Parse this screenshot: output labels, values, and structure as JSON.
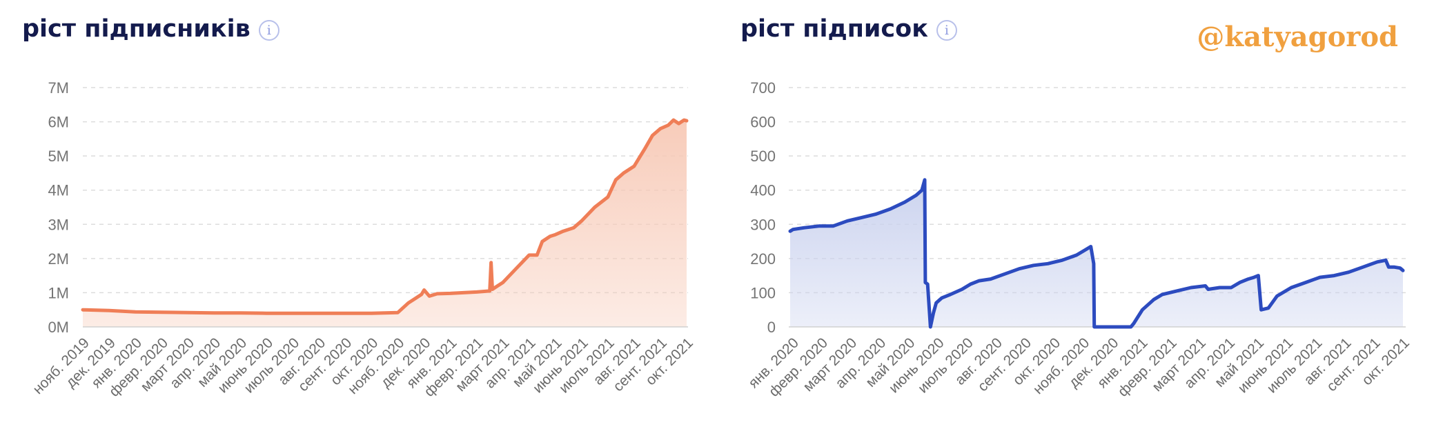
{
  "watermark": "@katyagorod",
  "info_glyph": "i",
  "chart_data": [
    {
      "type": "area",
      "title": "ріст підписників",
      "xlabel": "",
      "ylabel": "",
      "color": "#ef7e57",
      "fill_color": "#f7c9b6",
      "ylim": [
        0,
        7000000
      ],
      "y_ticks": [
        0,
        1000000,
        2000000,
        3000000,
        4000000,
        5000000,
        6000000,
        7000000
      ],
      "y_tick_labels": [
        "0M",
        "1M",
        "2M",
        "3M",
        "4M",
        "5M",
        "6M",
        "7M"
      ],
      "x_tick_labels": [
        "нояб. 2019",
        "дек. 2019",
        "янв. 2020",
        "февр. 2020",
        "март 2020",
        "апр. 2020",
        "май 2020",
        "июнь 2020",
        "июль 2020",
        "авг. 2020",
        "сент. 2020",
        "окт. 2020",
        "нояб. 2020",
        "дек. 2020",
        "янв. 2021",
        "февр. 2021",
        "март 2021",
        "апр. 2021",
        "май 2021",
        "июнь 2021",
        "июль 2021",
        "авг. 2021",
        "сент. 2021",
        "окт. 2021"
      ],
      "grid": true,
      "legend": "none",
      "x": [
        0,
        1,
        2,
        3,
        4,
        5,
        6,
        7,
        8,
        9,
        10,
        11,
        12,
        12.4,
        12.7,
        12.9,
        13.0,
        13.2,
        13.5,
        14.0,
        14.5,
        15.0,
        15.5,
        15.55,
        15.6,
        15.8,
        16.0,
        16.5,
        17.0,
        17.3,
        17.5,
        17.8,
        18.0,
        18.3,
        18.7,
        19.0,
        19.5,
        20.0,
        20.3,
        20.6,
        21.0,
        21.4,
        21.7,
        22.0,
        22.3,
        22.5,
        22.7,
        22.9,
        23.0
      ],
      "values": [
        500000,
        480000,
        440000,
        430000,
        420000,
        410000,
        410000,
        400000,
        400000,
        400000,
        400000,
        400000,
        420000,
        700000,
        850000,
        950000,
        1080000,
        900000,
        970000,
        980000,
        1000000,
        1020000,
        1050000,
        1880000,
        1100000,
        1200000,
        1300000,
        1700000,
        2100000,
        2100000,
        2500000,
        2650000,
        2700000,
        2800000,
        2900000,
        3100000,
        3500000,
        3800000,
        4300000,
        4500000,
        4700000,
        5200000,
        5600000,
        5800000,
        5900000,
        6050000,
        5950000,
        6050000,
        6030000
      ]
    },
    {
      "type": "area",
      "title": "ріст підписок",
      "xlabel": "",
      "ylabel": "",
      "color": "#2c4bbf",
      "fill_color": "#c9d1ee",
      "ylim": [
        0,
        700
      ],
      "y_ticks": [
        0,
        100,
        200,
        300,
        400,
        500,
        600,
        700
      ],
      "y_tick_labels": [
        "0",
        "100",
        "200",
        "300",
        "400",
        "500",
        "600",
        "700"
      ],
      "x_tick_labels": [
        "янв. 2020",
        "февр. 2020",
        "март 2020",
        "апр. 2020",
        "май 2020",
        "июнь 2020",
        "июль 2020",
        "авг. 2020",
        "сент. 2020",
        "окт. 2020",
        "нояб. 2020",
        "дек. 2020",
        "янв. 2021",
        "февр. 2021",
        "март 2021",
        "апр. 2021",
        "май 2021",
        "июнь 2021",
        "июль 2021",
        "авг. 2021",
        "сент. 2021",
        "окт. 2021"
      ],
      "grid": true,
      "legend": "none",
      "x": [
        0,
        0.1,
        0.5,
        1.0,
        1.5,
        2.0,
        2.5,
        3.0,
        3.5,
        4.0,
        4.4,
        4.6,
        4.7,
        4.72,
        4.8,
        4.9,
        5.0,
        5.1,
        5.3,
        5.6,
        6.0,
        6.3,
        6.6,
        7.0,
        7.5,
        8.0,
        8.5,
        9.0,
        9.5,
        10.0,
        10.3,
        10.5,
        10.6,
        10.62,
        11.0,
        11.5,
        11.9,
        12.0,
        12.3,
        12.7,
        13.0,
        13.5,
        14.0,
        14.5,
        14.6,
        15.0,
        15.4,
        15.7,
        16.0,
        16.2,
        16.35,
        16.45,
        16.7,
        17.0,
        17.5,
        18.0,
        18.5,
        19.0,
        19.5,
        20.0,
        20.5,
        20.8,
        20.9,
        21.1,
        21.3,
        21.4
      ],
      "values": [
        280,
        285,
        290,
        295,
        295,
        310,
        320,
        330,
        345,
        365,
        385,
        400,
        430,
        130,
        125,
        0,
        40,
        70,
        85,
        95,
        110,
        125,
        135,
        140,
        155,
        170,
        180,
        185,
        195,
        210,
        225,
        235,
        185,
        0,
        0,
        0,
        0,
        10,
        50,
        80,
        95,
        105,
        115,
        120,
        110,
        115,
        115,
        130,
        140,
        145,
        150,
        50,
        55,
        90,
        115,
        130,
        145,
        150,
        160,
        175,
        190,
        195,
        175,
        175,
        172,
        165
      ]
    }
  ]
}
